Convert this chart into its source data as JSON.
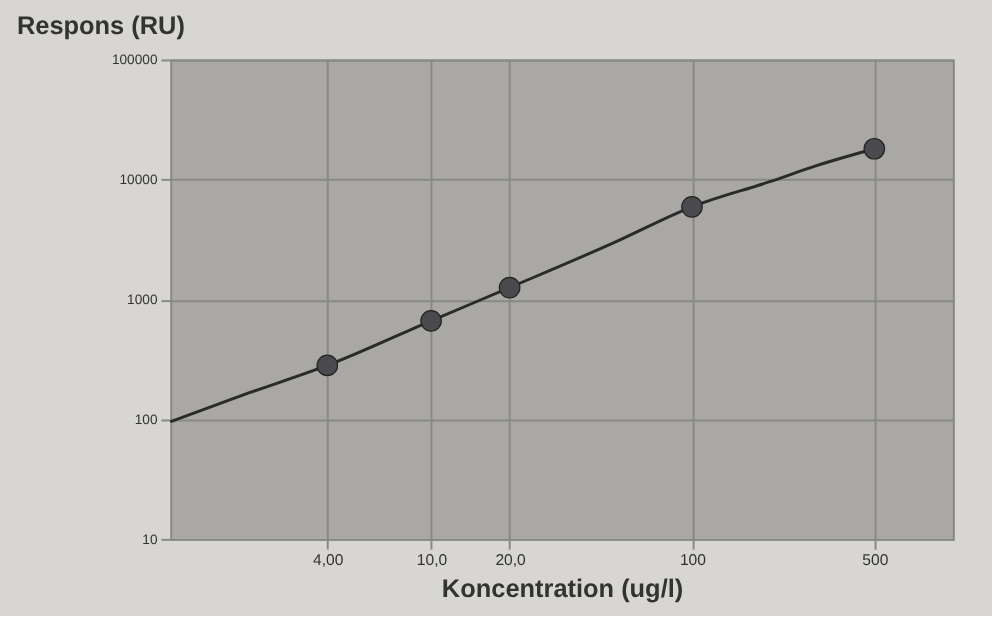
{
  "chart_data": {
    "type": "scatter",
    "title": "Respons (RU)",
    "xlabel": "Koncentration (ug/l)",
    "log": "xy",
    "grid": true,
    "xlim": [
      1,
      1000
    ],
    "xticks": [
      {
        "value": 4,
        "label": "4,00"
      },
      {
        "value": 10,
        "label": "10,0"
      },
      {
        "value": 20,
        "label": "20,0"
      },
      100,
      500
    ],
    "ylim": [
      10,
      100000
    ],
    "yticks": [
      10,
      100,
      1000,
      10000,
      100000
    ],
    "series": [
      {
        "type": "line",
        "marker": "none",
        "color": "#2a2a2a",
        "x": [
          1,
          2,
          4,
          10,
          20,
          50,
          100,
          200,
          300,
          500
        ],
        "values": [
          95,
          165,
          280,
          660,
          1250,
          2950,
          5900,
          9600,
          13000,
          18000
        ]
      },
      {
        "marker": "circle",
        "color": "#4a4a4e",
        "x": [
          4,
          10,
          20,
          100,
          500
        ],
        "values": [
          280,
          660,
          1250,
          5900,
          18000
        ]
      }
    ]
  }
}
